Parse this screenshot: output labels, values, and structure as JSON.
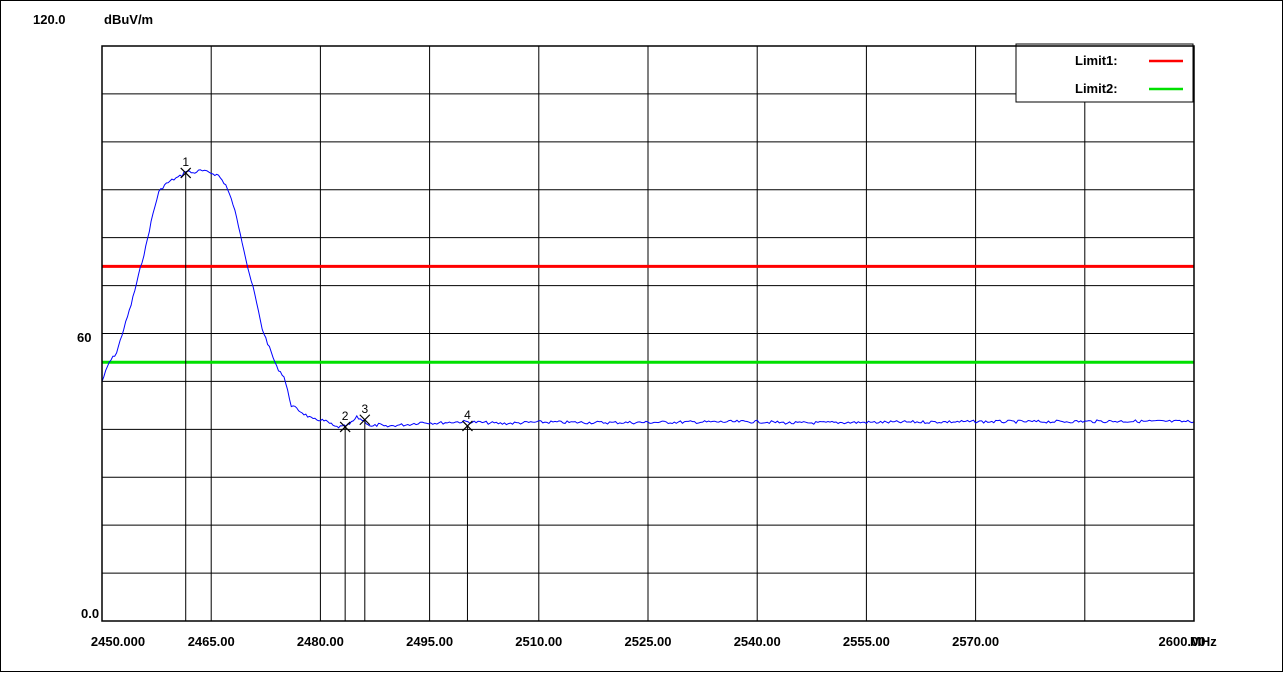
{
  "chart_data": {
    "type": "line",
    "y_top_label": "120.0",
    "y_unit": "dBuV/m",
    "y_mid_label": "60",
    "y_bottom_label": "0.0",
    "ylim": [
      0,
      120
    ],
    "xlim": [
      2450,
      2600
    ],
    "x_unit": "MHz",
    "x_tick_labels": [
      {
        "value": 2450,
        "label": "2450.000"
      },
      {
        "value": 2465,
        "label": "2465.00"
      },
      {
        "value": 2480,
        "label": "2480.00"
      },
      {
        "value": 2495,
        "label": "2495.00"
      },
      {
        "value": 2510,
        "label": "2510.00"
      },
      {
        "value": 2525,
        "label": "2525.00"
      },
      {
        "value": 2540,
        "label": "2540.00"
      },
      {
        "value": 2555,
        "label": "2555.00"
      },
      {
        "value": 2570,
        "label": "2570.00"
      },
      {
        "value": 2600,
        "label": "2600.00"
      }
    ],
    "grid": true,
    "limits": [
      {
        "name": "Limit1:",
        "value": 74,
        "color": "#ff0000"
      },
      {
        "name": "Limit2:",
        "value": 54,
        "color": "#00e000"
      }
    ],
    "legend_position": "top-right",
    "series": [
      {
        "color": "#0000ff",
        "points": [
          [
            2450,
            50
          ],
          [
            2451,
            54
          ],
          [
            2452,
            56
          ],
          [
            2453,
            61
          ],
          [
            2454,
            66
          ],
          [
            2455,
            72
          ],
          [
            2456,
            78
          ],
          [
            2457,
            85
          ],
          [
            2457.8,
            89.5
          ],
          [
            2458.6,
            91
          ],
          [
            2459.6,
            92
          ],
          [
            2461,
            93
          ],
          [
            2461.5,
            94
          ],
          [
            2462.5,
            93.5
          ],
          [
            2463.5,
            94
          ],
          [
            2465,
            93.5
          ],
          [
            2466,
            93
          ],
          [
            2467,
            91
          ],
          [
            2468,
            87
          ],
          [
            2469,
            81
          ],
          [
            2470,
            74
          ],
          [
            2471,
            68
          ],
          [
            2472,
            61
          ],
          [
            2473,
            57
          ],
          [
            2474,
            53
          ],
          [
            2475,
            51
          ],
          [
            2476,
            45
          ],
          [
            2477,
            44
          ],
          [
            2478,
            43
          ],
          [
            2479,
            42
          ],
          [
            2480,
            42
          ],
          [
            2481,
            41.5
          ],
          [
            2482,
            40.5
          ],
          [
            2483,
            40.5
          ],
          [
            2484,
            41
          ],
          [
            2485,
            42.5
          ],
          [
            2486,
            41.8
          ],
          [
            2487,
            40.5
          ],
          [
            2488,
            41
          ],
          [
            2489,
            40.5
          ],
          [
            2490,
            40.8
          ],
          [
            2492,
            41
          ],
          [
            2494,
            41.5
          ],
          [
            2496,
            41.3
          ],
          [
            2498,
            41.5
          ],
          [
            2500,
            41.6
          ],
          [
            2505,
            41.2
          ],
          [
            2510,
            41.5
          ],
          [
            2520,
            41.4
          ],
          [
            2530,
            41.5
          ],
          [
            2540,
            41.6
          ],
          [
            2545,
            41.3
          ],
          [
            2550,
            41.4
          ],
          [
            2560,
            41.5
          ],
          [
            2570,
            41.6
          ],
          [
            2580,
            41.6
          ],
          [
            2590,
            41.7
          ],
          [
            2600,
            41.6
          ]
        ]
      }
    ],
    "markers": [
      {
        "label": "1",
        "x": 2461.5,
        "y": 93.5
      },
      {
        "label": "2",
        "x": 2483.4,
        "y": 40.5
      },
      {
        "label": "3",
        "x": 2486.1,
        "y": 42.0
      },
      {
        "label": "4",
        "x": 2500.2,
        "y": 40.7
      }
    ]
  }
}
